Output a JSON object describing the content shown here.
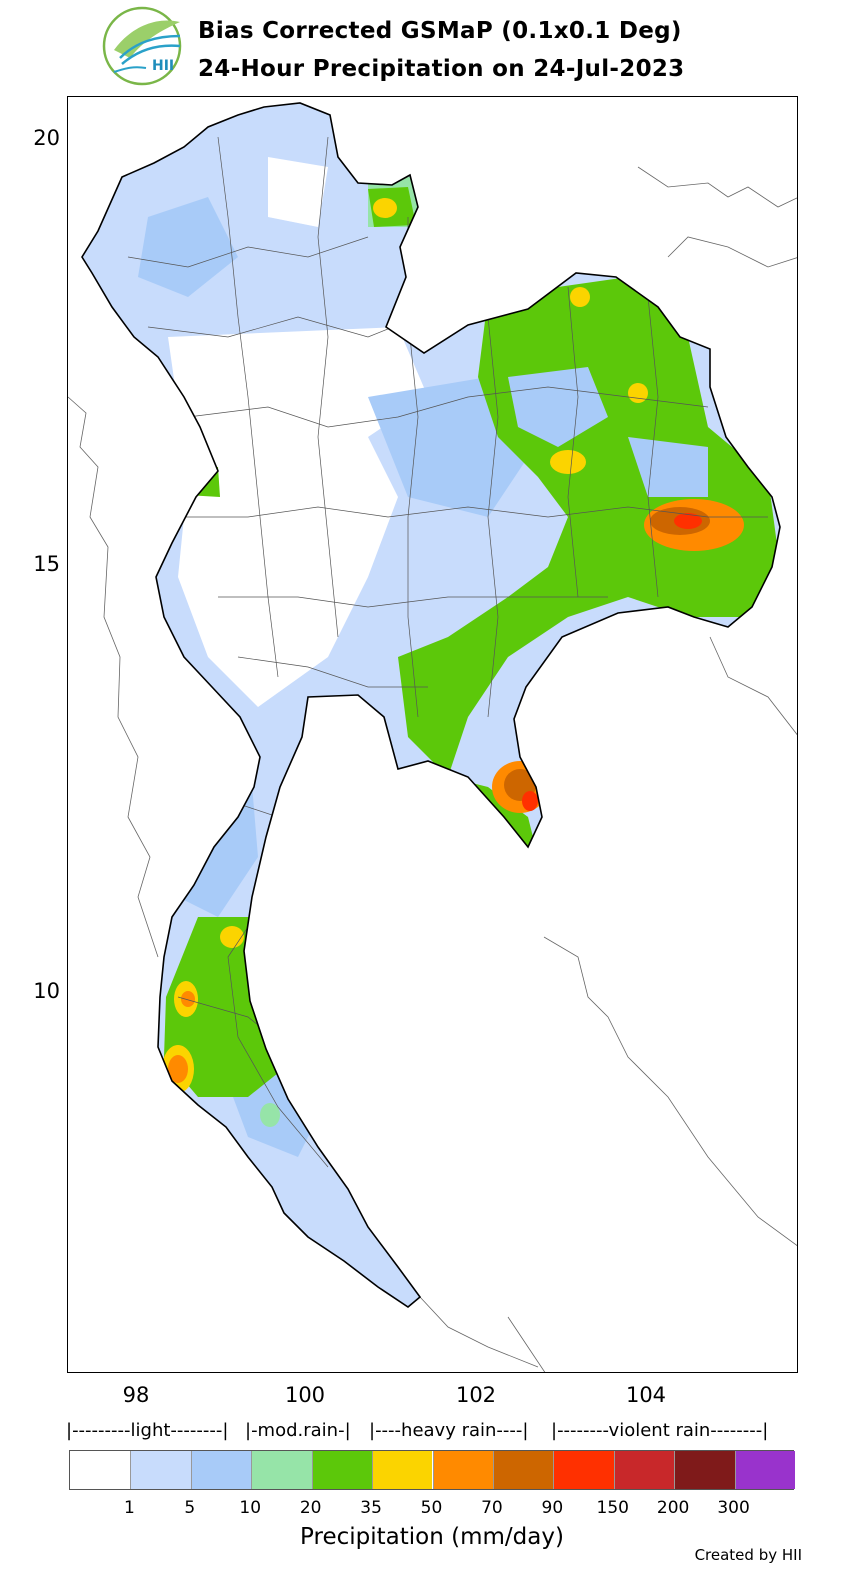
{
  "header": {
    "title_line1": "Bias Corrected GSMaP (0.1x0.1 Deg)",
    "title_line2": "24-Hour Precipitation on 24-Jul-2023",
    "logo_text": "HII"
  },
  "map": {
    "region": "Thailand",
    "y_ticks": [
      "20",
      "15",
      "10"
    ],
    "x_ticks": [
      "98",
      "100",
      "102",
      "104"
    ]
  },
  "legend": {
    "categories": [
      "|---------light--------|",
      "|-mod.rain-|",
      "|----heavy rain----|",
      "|--------violent rain--------|"
    ],
    "levels": [
      "1",
      "5",
      "10",
      "20",
      "35",
      "50",
      "70",
      "90",
      "150",
      "200",
      "300"
    ],
    "colors": [
      "#ffffff",
      "#c8dcfc",
      "#a8cbf8",
      "#96e4a8",
      "#5cc80a",
      "#fbd400",
      "#ff8a00",
      "#cd6600",
      "#ff3000",
      "#c8282a",
      "#7f1a1a",
      "#9933cc"
    ],
    "xlabel": "Precipitation (mm/day)"
  },
  "footer": {
    "credit": "Created by HII"
  }
}
